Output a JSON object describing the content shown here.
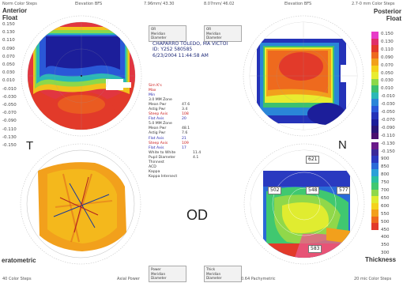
{
  "header": {
    "left_scale_title": "Norm Color Steps",
    "elevation_top_left": "Elevation BFS",
    "elevation_top_center": "7.96mm/ 43.30",
    "elevation_top_center2": "8.07mm/ 46.02",
    "elevation_top_right": "Elevation BFS",
    "right_scale_title": "2.7-0 mm Color Steps"
  },
  "left_scale": {
    "title_lines": [
      "Anterior",
      "Float"
    ],
    "ticks": [
      "0.150",
      "0.130",
      "0.110",
      "0.090",
      "0.070",
      "0.050",
      "0.030",
      "0.010",
      "-0.010",
      "-0.030",
      "-0.050",
      "-0.070",
      "-0.090",
      "-0.110",
      "-0.130",
      "-0.150"
    ],
    "colors": [
      "#e83cc8",
      "#e0306a",
      "#e23a2a",
      "#ee6a1e",
      "#f2a01c",
      "#f4d21c",
      "#e8ec30",
      "#8cd84a",
      "#3cc070",
      "#2ab8b6",
      "#2a86d8",
      "#2a58d8",
      "#2432b8",
      "#1c1e9a",
      "#2a1678",
      "#4a1070"
    ]
  },
  "right_scale": {
    "title_lines": [
      "Posterior",
      "Float"
    ],
    "ticks": [
      "0.150",
      "0.130",
      "0.110",
      "0.090",
      "0.070",
      "0.050",
      "0.030",
      "0.010",
      "-0.010",
      "-0.030",
      "-0.050",
      "-0.070",
      "-0.090",
      "-0.110",
      "-0.130",
      "-0.150",
      "900",
      "850",
      "800",
      "750",
      "700",
      "650",
      "600",
      "550",
      "500",
      "450",
      "400",
      "350",
      "300"
    ],
    "colors_top": [
      "#e83cc8",
      "#e0306a",
      "#e23a2a",
      "#ee6a1e",
      "#f2a01c",
      "#f4d21c",
      "#e8ec30",
      "#8cd84a",
      "#3cc070",
      "#2ab8b6",
      "#2a86d8",
      "#2a58d8",
      "#2432b8",
      "#1c1e9a",
      "#2a1678",
      "#4a1070"
    ],
    "colors_bottom": [
      "#6a1a8a",
      "#3a2a9a",
      "#2a3ac0",
      "#2a6ad8",
      "#2aa0d8",
      "#2ac0a0",
      "#40c870",
      "#90d84a",
      "#e0ec30",
      "#f4d21c",
      "#f2a01c",
      "#ee6a1e",
      "#e23a2a"
    ]
  },
  "side_labels": {
    "T": "T",
    "N": "N",
    "OD": "OD",
    "left_bottom": "eratometric",
    "right_bottom": "Thickness"
  },
  "patient": {
    "line1": "CHAPARRO TOLEDO, MA VICTOI",
    "line2": "ID: Y2S2 580585",
    "line3": "6/23/2004 11:44:58 AM"
  },
  "stats_rows": [
    {
      "label": "Sim K's",
      "v1": "",
      "v2": "",
      "c": "#cc1a1a"
    },
    {
      "label": "Max",
      "v1": "",
      "v2": "",
      "c": "#cc1a1a"
    },
    {
      "label": "Min",
      "v1": "",
      "v2": "",
      "c": "#2a2ab0"
    },
    {
      "label": "3.0 MM Zone",
      "v1": "",
      "v2": "",
      "c": "#333"
    },
    {
      "label": "Mean Pwr",
      "v1": "47.6",
      "v2": "",
      "c": "#333"
    },
    {
      "label": "Astig Pwr",
      "v1": "3.4",
      "v2": "",
      "c": "#333"
    },
    {
      "label": "Steep Axis",
      "v1": "108",
      "v2": "",
      "c": "#cc1a1a"
    },
    {
      "label": "Flat Axis",
      "v1": "20",
      "v2": "",
      "c": "#2a2ab0"
    },
    {
      "label": "5.0 MM Zone",
      "v1": "",
      "v2": "",
      "c": "#333"
    },
    {
      "label": "Mean Pwr",
      "v1": "48.1",
      "v2": "",
      "c": "#333"
    },
    {
      "label": "Astig Pwr",
      "v1": "7.6",
      "v2": "",
      "c": "#333"
    },
    {
      "label": "Flat Axis",
      "v1": "21",
      "v2": "",
      "c": "#2a2ab0"
    },
    {
      "label": "Steep Axis",
      "v1": "109",
      "v2": "",
      "c": "#cc1a1a"
    },
    {
      "label": "Flat Axis",
      "v1": "17",
      "v2": "",
      "c": "#2a2ab0"
    },
    {
      "label": "White to White",
      "v1": "",
      "v2": "11.4",
      "c": "#333"
    },
    {
      "label": "Pupil Diameter",
      "v1": "",
      "v2": "4.1",
      "c": "#333"
    },
    {
      "label": "Thinnest",
      "v1": "",
      "v2": "",
      "c": "#333"
    },
    {
      "label": "ACD",
      "v1": "",
      "v2": "",
      "c": "#333"
    },
    {
      "label": "Kappa",
      "v1": "",
      "v2": "",
      "c": "#333"
    },
    {
      "label": "Kappa Intersect",
      "v1": "",
      "v2": "",
      "c": "#333"
    }
  ],
  "thickness_values": [
    "621",
    "502",
    "548",
    "577",
    "583"
  ],
  "info_boxes": {
    "top_left": [
      "OR",
      "Meridian",
      "Diameter"
    ],
    "top_right": [
      "OR",
      "Meridian",
      "Diameter"
    ],
    "bottom_left": [
      "Power",
      "Meridian",
      "Diameter"
    ],
    "bottom_right": [
      "Thick",
      "Meridian",
      "Diameter"
    ]
  },
  "footer": {
    "left": "40 Color Steps",
    "center_left": "Axial Power",
    "center_right": "0.64 Pachymetric",
    "right": "20 mic Color Steps"
  }
}
